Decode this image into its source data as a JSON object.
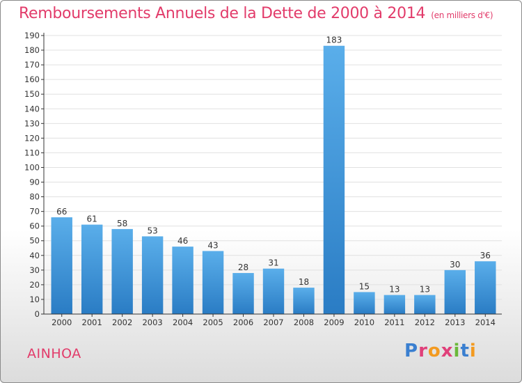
{
  "header": {
    "title": "Remboursements Annuels de la Dette de 2000 à 2014",
    "subtitle": "(en milliers d'€)"
  },
  "footer": {
    "commune": "AINHOA",
    "logo_text": "Proxiti"
  },
  "colors": {
    "accent": "#e23b6a",
    "bar_top": "#5aaeea",
    "bar_bottom": "#2a7cc4"
  },
  "chart_data": {
    "type": "bar",
    "title": "Remboursements Annuels de la Dette de 2000 à 2014",
    "subtitle": "(en milliers d'€)",
    "xlabel": "",
    "ylabel": "",
    "categories": [
      "2000",
      "2001",
      "2002",
      "2003",
      "2004",
      "2005",
      "2006",
      "2007",
      "2008",
      "2009",
      "2010",
      "2011",
      "2012",
      "2013",
      "2014"
    ],
    "values": [
      66,
      61,
      58,
      53,
      46,
      43,
      28,
      31,
      18,
      183,
      15,
      13,
      13,
      30,
      36
    ],
    "ylim": [
      0,
      190
    ],
    "ytick_step": 10,
    "grid": true,
    "legend": "none"
  }
}
